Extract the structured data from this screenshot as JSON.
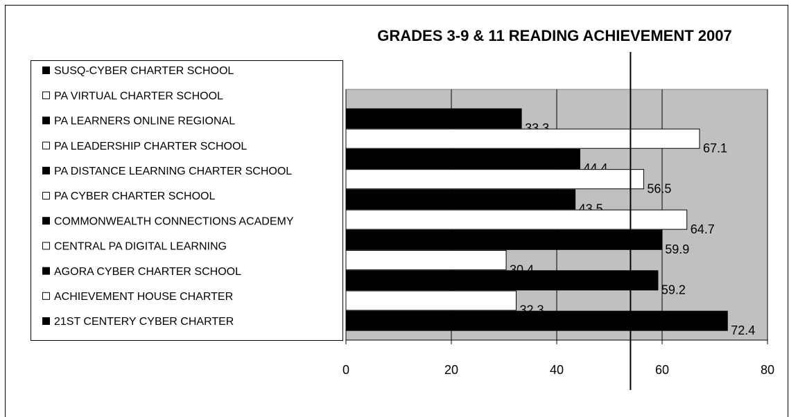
{
  "chart_data": {
    "type": "bar",
    "orientation": "horizontal",
    "title": "GRADES 3-9 & 11 READING ACHIEVEMENT 2007",
    "categories": [
      "SUSQ-CYBER CHARTER SCHOOL",
      "PA VIRTUAL CHARTER SCHOOL",
      "PA LEARNERS ONLINE REGIONAL",
      "PA LEADERSHIP CHARTER SCHOOL",
      "PA DISTANCE LEARNING CHARTER SCHOOL",
      "PA CYBER CHARTER SCHOOL",
      "COMMONWEALTH CONNECTIONS ACADEMY",
      "CENTRAL PA DIGITAL LEARNING",
      "AGORA CYBER CHARTER SCHOOL",
      "ACHIEVEMENT HOUSE CHARTER",
      "21ST CENTERY CYBER CHARTER"
    ],
    "values": [
      33.3,
      67.1,
      44.4,
      56.5,
      43.5,
      64.7,
      59.9,
      30.4,
      59.2,
      32.3,
      72.4
    ],
    "colors": [
      "#000000",
      "#ffffff",
      "#000000",
      "#ffffff",
      "#000000",
      "#ffffff",
      "#000000",
      "#ffffff",
      "#000000",
      "#ffffff",
      "#000000"
    ],
    "xlim": [
      0,
      80
    ],
    "xticks": [
      0,
      20,
      40,
      60,
      80
    ],
    "grid": true,
    "reference_line": 54,
    "legend": "left"
  }
}
